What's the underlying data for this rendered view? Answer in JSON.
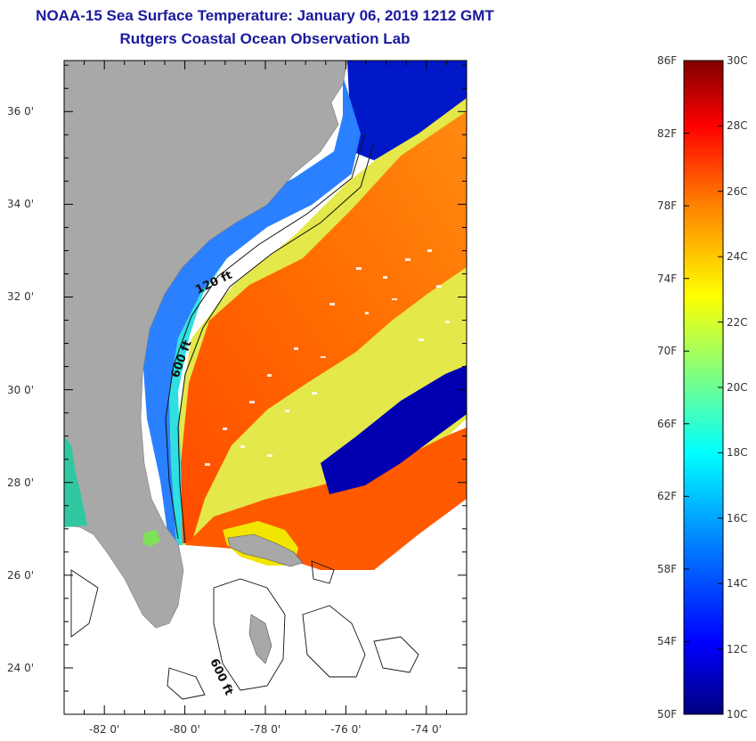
{
  "title": {
    "line1": "NOAA-15 Sea Surface Temperature:  January 06, 2019 1212 GMT",
    "line2": "Rutgers Coastal Ocean Observation Lab"
  },
  "map": {
    "lat_ticks": [
      {
        "lat": 36,
        "label": "36 0'"
      },
      {
        "lat": 34,
        "label": "34 0'"
      },
      {
        "lat": 32,
        "label": "32 0'"
      },
      {
        "lat": 30,
        "label": "30 0'"
      },
      {
        "lat": 28,
        "label": "28 0'"
      },
      {
        "lat": 26,
        "label": "26 0'"
      },
      {
        "lat": 24,
        "label": "24 0'"
      }
    ],
    "lon_ticks": [
      {
        "lon": -82,
        "label": "-82 0'"
      },
      {
        "lon": -80,
        "label": "-80 0'"
      },
      {
        "lon": -78,
        "label": "-78 0'"
      },
      {
        "lon": -76,
        "label": "-76 0'"
      },
      {
        "lon": -74,
        "label": "-74 0'"
      }
    ],
    "lat_range": [
      23,
      37.1
    ],
    "lon_range": [
      -83,
      -73
    ],
    "contour_labels": [
      "120 ft",
      "600 ft",
      "600 ft"
    ],
    "land_color": "#a8a8a8",
    "nodata_color": "#ffffff"
  },
  "colorbar": {
    "f_labels": [
      "86F",
      "82F",
      "78F",
      "74F",
      "70F",
      "66F",
      "62F",
      "58F",
      "54F",
      "50F"
    ],
    "c_labels": [
      "30C",
      "28C",
      "26C",
      "24C",
      "22C",
      "20C",
      "18C",
      "16C",
      "14C",
      "12C",
      "10C"
    ],
    "f_range": [
      50,
      86
    ],
    "c_range": [
      10,
      30
    ],
    "colors": [
      "#000080",
      "#0000ff",
      "#0080ff",
      "#00ffff",
      "#80ff80",
      "#ffff00",
      "#ff8000",
      "#ff0000",
      "#800000"
    ]
  }
}
